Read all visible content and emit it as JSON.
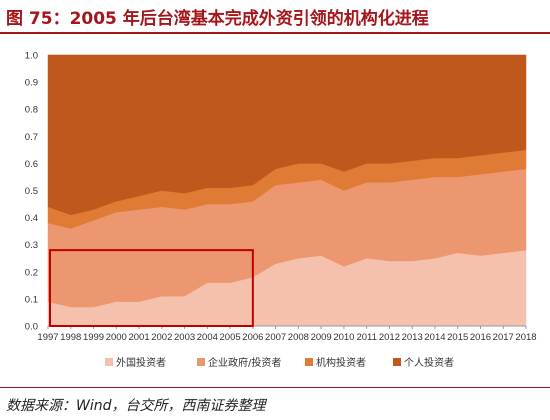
{
  "header": {
    "title": "图 75：2005 年后台湾基本完成外资引领的机构化进程"
  },
  "footer": {
    "source": "数据来源：Wind，台交所，西南证券整理"
  },
  "chart_data": {
    "type": "area",
    "stacked": true,
    "x": [
      "1997",
      "1998",
      "1999",
      "2000",
      "2001",
      "2002",
      "2003",
      "2004",
      "2005",
      "2006",
      "2007",
      "2008",
      "2009",
      "2010",
      "2011",
      "2012",
      "2013",
      "2014",
      "2015",
      "2016",
      "2017",
      "2018"
    ],
    "ylim": [
      0,
      1.0
    ],
    "yticks": [
      "0.0",
      "0.1",
      "0.2",
      "0.3",
      "0.4",
      "0.5",
      "0.6",
      "0.7",
      "0.8",
      "0.9",
      "1.0"
    ],
    "grid": true,
    "legend_position": "bottom",
    "series": [
      {
        "name": "外国投资者",
        "color": "#f5c1ad",
        "values": [
          0.09,
          0.07,
          0.07,
          0.09,
          0.09,
          0.11,
          0.11,
          0.16,
          0.16,
          0.18,
          0.23,
          0.25,
          0.26,
          0.22,
          0.25,
          0.24,
          0.24,
          0.25,
          0.27,
          0.26,
          0.27,
          0.28
        ]
      },
      {
        "name": "企业政府/投资者",
        "color": "#ec9770",
        "values": [
          0.29,
          0.29,
          0.32,
          0.33,
          0.34,
          0.33,
          0.32,
          0.29,
          0.29,
          0.28,
          0.29,
          0.28,
          0.28,
          0.28,
          0.28,
          0.29,
          0.3,
          0.3,
          0.28,
          0.3,
          0.3,
          0.3
        ]
      },
      {
        "name": "机构投资者",
        "color": "#e07b35",
        "values": [
          0.06,
          0.05,
          0.04,
          0.04,
          0.05,
          0.06,
          0.06,
          0.06,
          0.06,
          0.06,
          0.06,
          0.07,
          0.06,
          0.07,
          0.07,
          0.07,
          0.07,
          0.07,
          0.07,
          0.07,
          0.07,
          0.07
        ]
      },
      {
        "name": "个人投资者",
        "color": "#c0581d",
        "values": [
          0.56,
          0.59,
          0.57,
          0.54,
          0.52,
          0.5,
          0.51,
          0.49,
          0.49,
          0.48,
          0.42,
          0.4,
          0.4,
          0.43,
          0.4,
          0.4,
          0.39,
          0.38,
          0.38,
          0.37,
          0.36,
          0.35
        ]
      }
    ],
    "highlight_box": {
      "x_start": "1997",
      "x_end": "2006",
      "y_range": [
        0.0,
        0.28
      ],
      "color": "#c00000"
    }
  }
}
